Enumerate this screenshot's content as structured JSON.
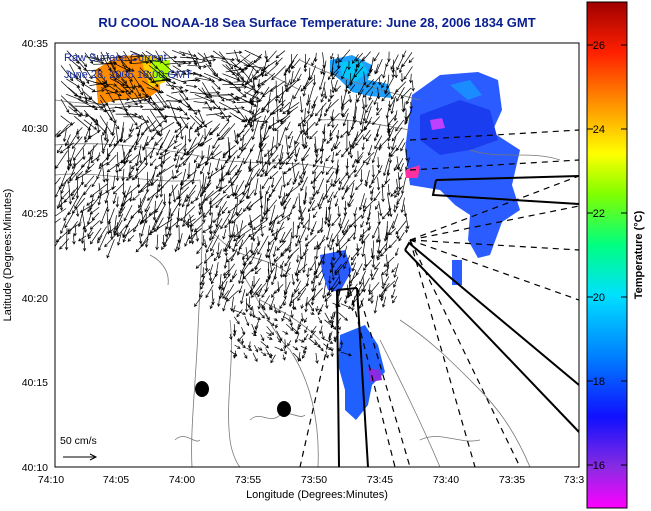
{
  "title": "RU COOL  NOAA-18 Sea Surface Temperature:  June 28, 2006 1834 GMT",
  "legend": {
    "line1": "Raw Surface Current",
    "line2": "June 28, 2006 18:00 GMT"
  },
  "scale": {
    "label": "50 cm/s"
  },
  "axes": {
    "xlabel": "Longitude (Degrees:Minutes)",
    "ylabel": "Latitude (Degrees:Minutes)",
    "x_ticks": [
      "74:10",
      "74:05",
      "74:00",
      "73:55",
      "73:50",
      "73:45",
      "73:40",
      "73:35",
      "73:3"
    ],
    "y_ticks": [
      "40:35",
      "40:30",
      "40:25",
      "40:20",
      "40:15",
      "40:10"
    ]
  },
  "colorbar": {
    "label": "Temperature (°C)",
    "ticks": [
      "26",
      "24",
      "22",
      "20",
      "18",
      "16"
    ],
    "range": [
      15.2,
      27.2
    ]
  },
  "colors": {
    "title": "#0a1f8f",
    "arrows": "#000000",
    "land_contours": "#666666"
  }
}
